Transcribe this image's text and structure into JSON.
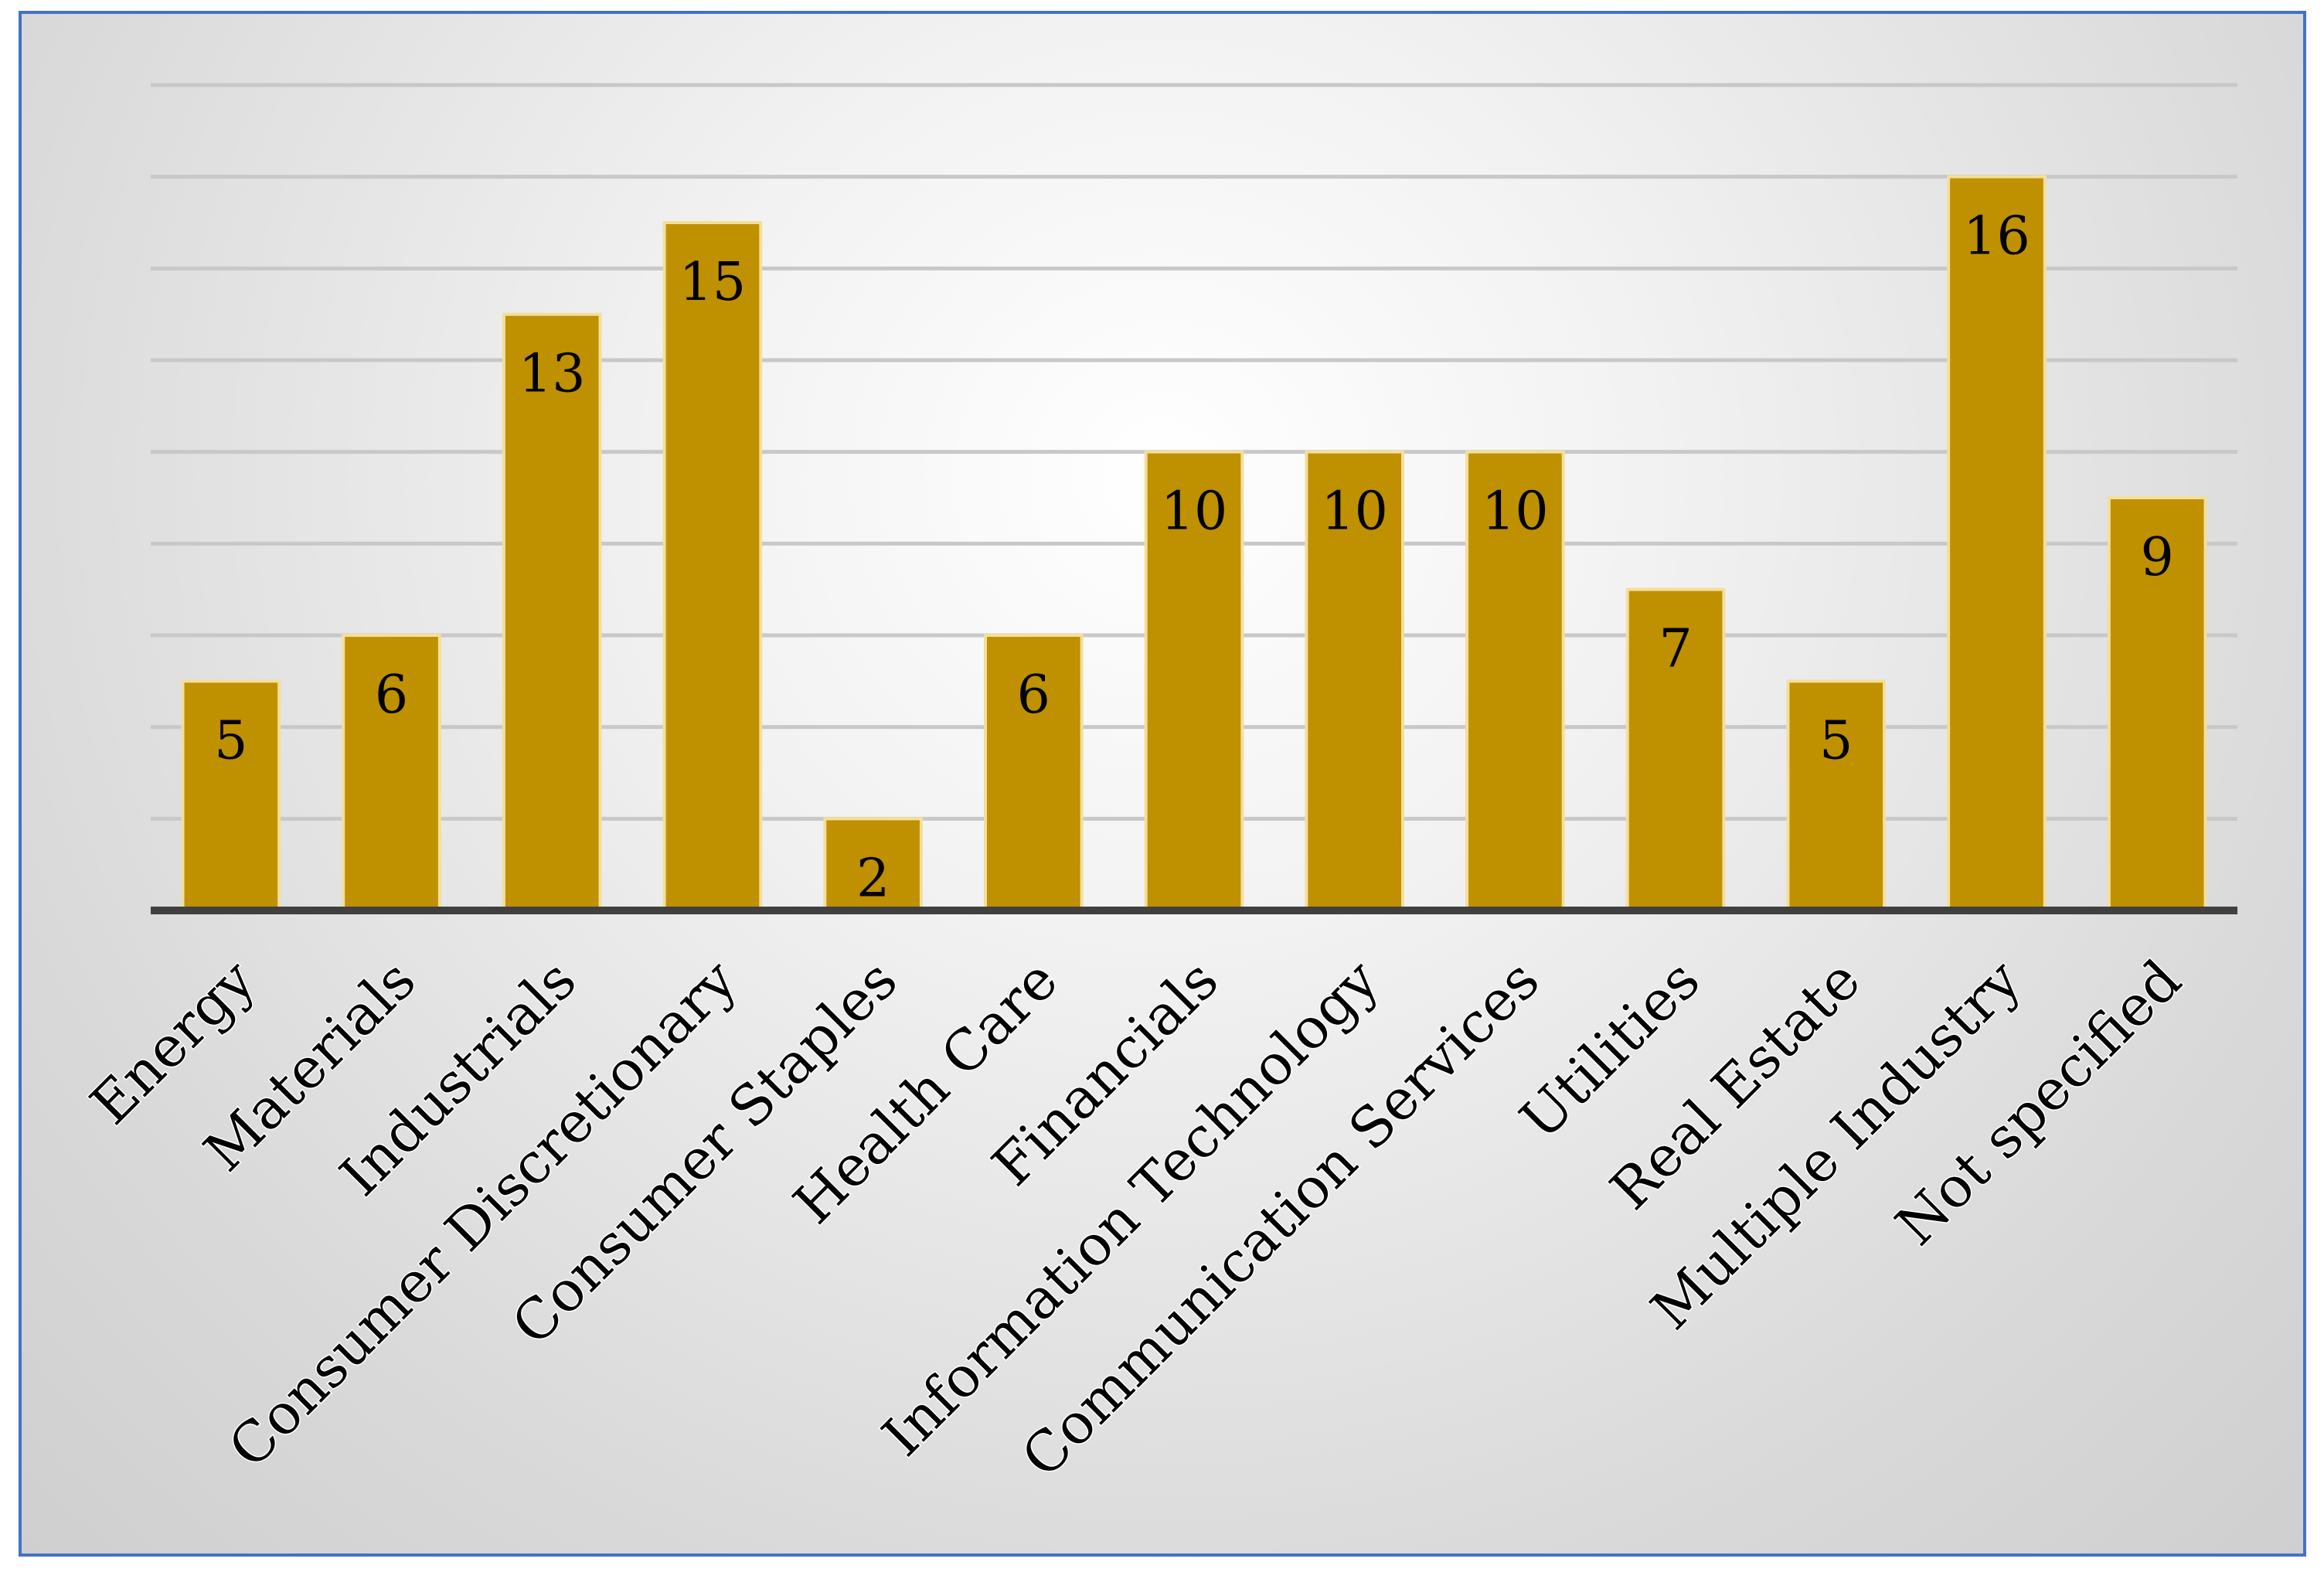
{
  "chart_data": {
    "type": "bar",
    "categories": [
      "Energy",
      "Materials",
      "Industrials",
      "Consumer Discretionary",
      "Consumer Staples",
      "Health Care",
      "Financials",
      "Information Technology",
      "Communication Services",
      "Utilities",
      "Real Estate",
      "Multiple Industry",
      "Not specified"
    ],
    "values": [
      5,
      6,
      13,
      15,
      2,
      6,
      10,
      10,
      10,
      7,
      5,
      16,
      9
    ],
    "data_labels": [
      "5",
      "6",
      "13",
      "15",
      "2",
      "6",
      "10",
      "10",
      "10",
      "7",
      "5",
      "16",
      "9"
    ],
    "ylim": [
      0,
      18
    ],
    "grid": true,
    "legend": "none",
    "bar_color": "#bf9000",
    "bar_border_color": "#f3df9c",
    "border_color": "#4472c4"
  }
}
